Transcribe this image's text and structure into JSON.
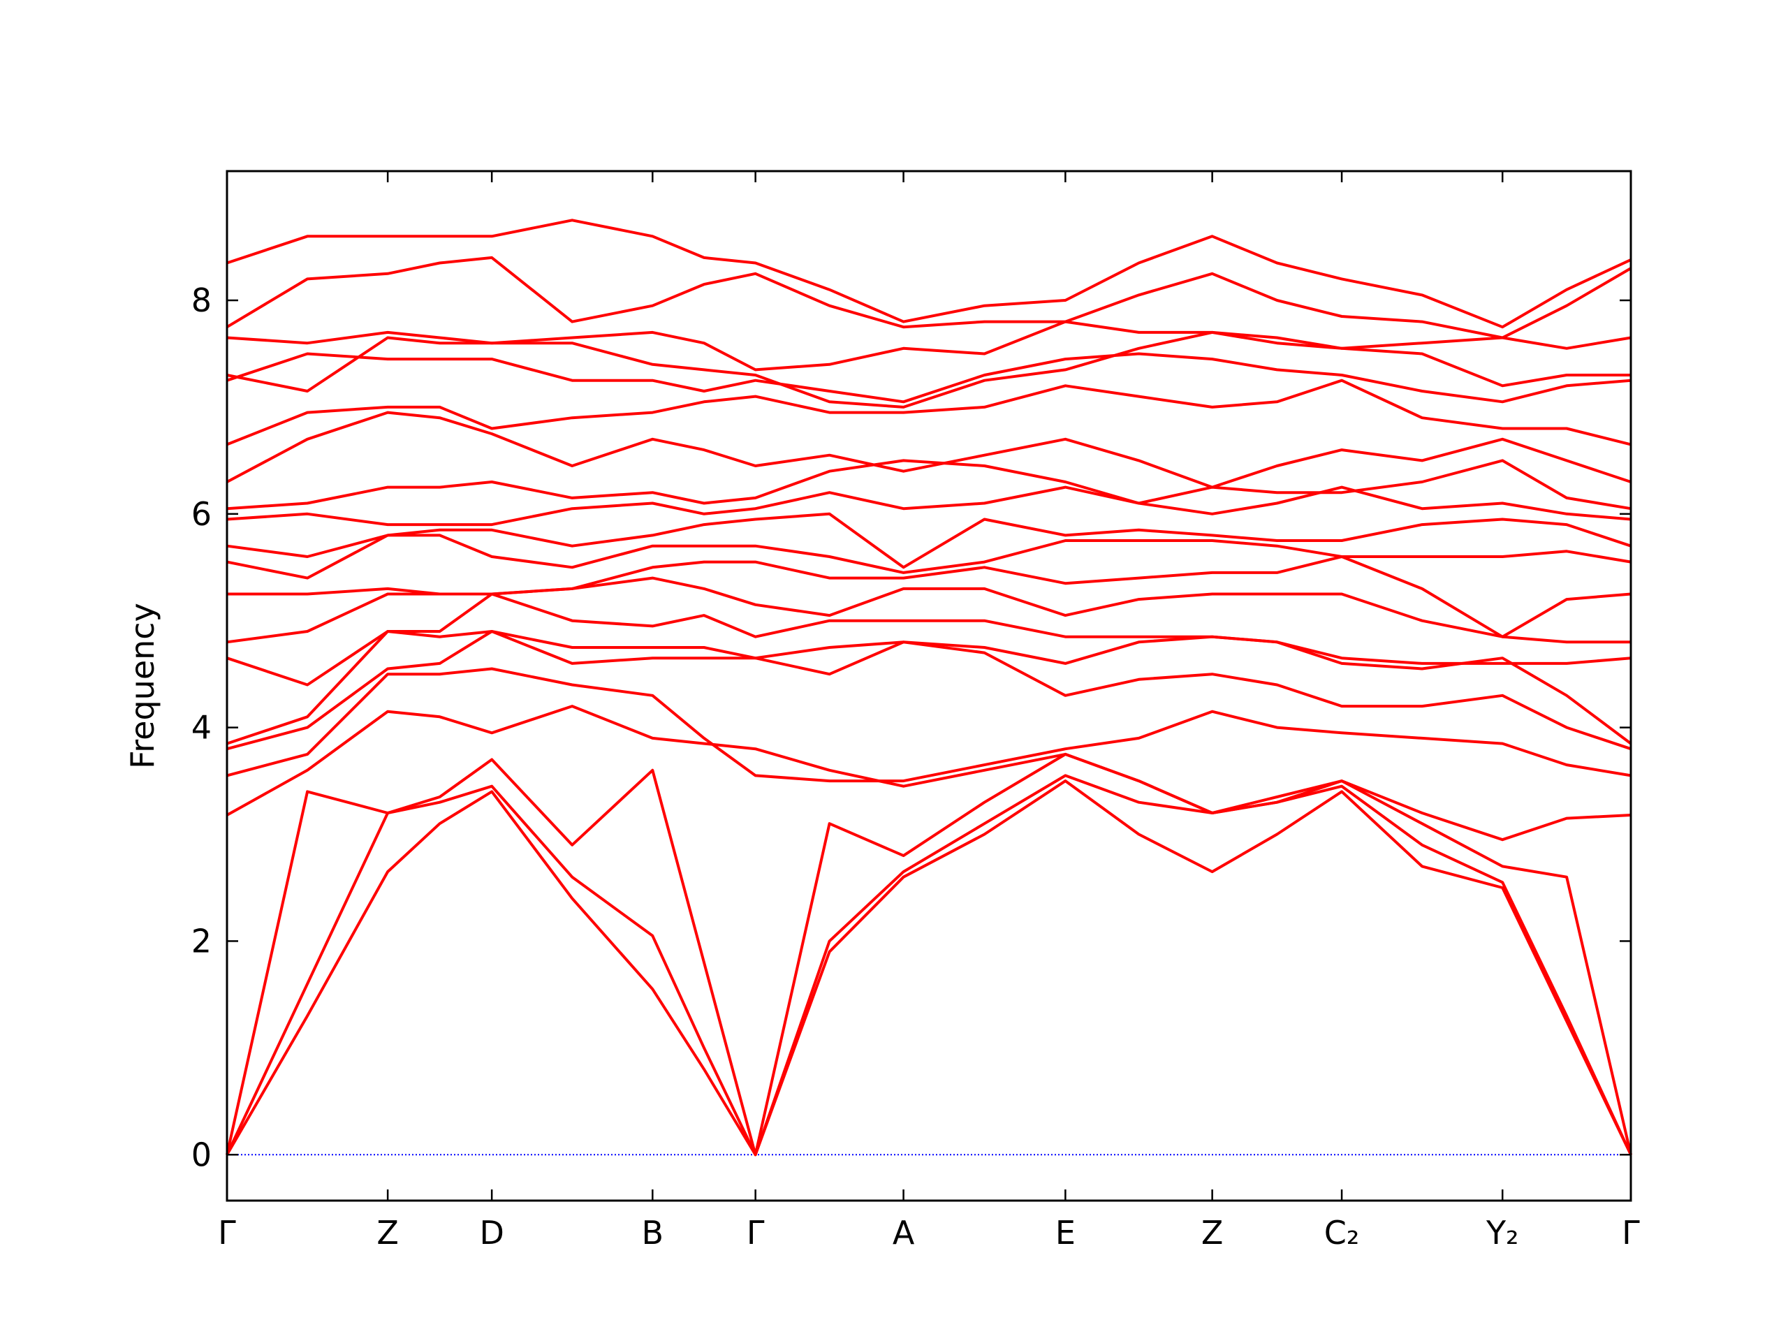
{
  "chart_data": {
    "type": "line",
    "ylabel": "Frequency",
    "x": [
      0,
      0.695,
      1.39,
      1.84,
      2.29,
      2.985,
      3.68,
      4.125,
      4.57,
      5.21,
      5.85,
      6.55,
      7.25,
      7.885,
      8.52,
      9.08,
      9.64,
      10.335,
      11.03,
      11.585,
      12.14
    ],
    "xlim": [
      0,
      12.14
    ],
    "xticks": [
      {
        "value": 0,
        "label": "Γ"
      },
      {
        "value": 1.39,
        "label": "Z"
      },
      {
        "value": 2.29,
        "label": "D"
      },
      {
        "value": 3.68,
        "label": "B"
      },
      {
        "value": 4.57,
        "label": "Γ"
      },
      {
        "value": 5.85,
        "label": "A"
      },
      {
        "value": 7.25,
        "label": "E"
      },
      {
        "value": 8.52,
        "label": "Z"
      },
      {
        "value": 9.64,
        "label": "C₂"
      },
      {
        "value": 11.03,
        "label": "Y₂"
      },
      {
        "value": 12.14,
        "label": "Γ"
      }
    ],
    "ylim": [
      -0.43,
      9.21
    ],
    "yticks": [
      0,
      2,
      4,
      6,
      8
    ],
    "color": "#ff0000",
    "zero_line": {
      "y": 0,
      "color": "#0000ff"
    },
    "series": [
      {
        "values": [
          0,
          1.3,
          2.65,
          3.1,
          3.4,
          2.4,
          1.55,
          0.8,
          0,
          1.9,
          2.6,
          3.0,
          3.5,
          3.0,
          2.65,
          3.0,
          3.4,
          2.7,
          2.5,
          1.25,
          0
        ]
      },
      {
        "values": [
          0,
          1.6,
          3.2,
          3.3,
          3.45,
          2.6,
          2.05,
          1.0,
          0,
          2.0,
          2.65,
          3.1,
          3.55,
          3.3,
          3.2,
          3.3,
          3.45,
          2.9,
          2.55,
          1.3,
          0
        ]
      },
      {
        "values": [
          0,
          3.4,
          3.2,
          3.35,
          3.7,
          2.9,
          3.6,
          1.8,
          0,
          3.1,
          2.8,
          3.3,
          3.75,
          3.5,
          3.2,
          3.3,
          3.5,
          3.1,
          2.7,
          2.6,
          0
        ]
      },
      {
        "values": [
          3.18,
          3.6,
          4.15,
          4.1,
          3.95,
          4.2,
          3.9,
          3.85,
          3.8,
          3.6,
          3.45,
          3.6,
          3.75,
          3.5,
          3.2,
          3.35,
          3.5,
          3.2,
          2.95,
          3.15,
          3.18
        ]
      },
      {
        "values": [
          3.55,
          3.75,
          4.5,
          4.5,
          4.55,
          4.4,
          4.3,
          3.9,
          3.55,
          3.5,
          3.5,
          3.65,
          3.8,
          3.9,
          4.15,
          4.0,
          3.95,
          3.9,
          3.85,
          3.65,
          3.55
        ]
      },
      {
        "values": [
          3.8,
          4.0,
          4.55,
          4.6,
          4.9,
          4.6,
          4.65,
          4.65,
          4.65,
          4.5,
          4.8,
          4.7,
          4.3,
          4.45,
          4.5,
          4.4,
          4.2,
          4.2,
          4.3,
          4.0,
          3.8
        ]
      },
      {
        "values": [
          3.85,
          4.1,
          4.9,
          4.85,
          4.9,
          4.75,
          4.75,
          4.75,
          4.65,
          4.75,
          4.8,
          4.75,
          4.6,
          4.8,
          4.85,
          4.8,
          4.6,
          4.55,
          4.65,
          4.3,
          3.85
        ]
      },
      {
        "values": [
          4.65,
          4.4,
          4.9,
          4.9,
          5.25,
          5.0,
          4.95,
          5.05,
          4.85,
          5.0,
          5.0,
          5.0,
          4.85,
          4.85,
          4.85,
          4.8,
          4.65,
          4.6,
          4.6,
          4.6,
          4.65
        ]
      },
      {
        "values": [
          4.8,
          4.9,
          5.25,
          5.25,
          5.25,
          5.3,
          5.4,
          5.3,
          5.15,
          5.05,
          5.3,
          5.3,
          5.05,
          5.2,
          5.25,
          5.25,
          5.25,
          5.0,
          4.85,
          4.8,
          4.8
        ]
      },
      {
        "values": [
          5.25,
          5.25,
          5.3,
          5.25,
          5.25,
          5.3,
          5.5,
          5.55,
          5.55,
          5.4,
          5.4,
          5.5,
          5.35,
          5.4,
          5.45,
          5.45,
          5.6,
          5.3,
          4.85,
          5.2,
          5.25
        ]
      },
      {
        "values": [
          5.55,
          5.4,
          5.8,
          5.8,
          5.6,
          5.5,
          5.7,
          5.7,
          5.7,
          5.6,
          5.45,
          5.55,
          5.75,
          5.75,
          5.75,
          5.7,
          5.6,
          5.6,
          5.6,
          5.65,
          5.55
        ]
      },
      {
        "values": [
          5.7,
          5.6,
          5.8,
          5.85,
          5.85,
          5.7,
          5.8,
          5.9,
          5.95,
          6.0,
          5.5,
          5.95,
          5.8,
          5.85,
          5.8,
          5.75,
          5.75,
          5.9,
          5.95,
          5.9,
          5.7
        ]
      },
      {
        "values": [
          5.95,
          6.0,
          5.9,
          5.9,
          5.9,
          6.05,
          6.1,
          6.0,
          6.05,
          6.2,
          6.05,
          6.1,
          6.25,
          6.1,
          6.0,
          6.1,
          6.25,
          6.05,
          6.1,
          6.0,
          5.95
        ]
      },
      {
        "values": [
          6.05,
          6.1,
          6.25,
          6.25,
          6.3,
          6.15,
          6.2,
          6.1,
          6.15,
          6.4,
          6.5,
          6.45,
          6.3,
          6.1,
          6.25,
          6.2,
          6.2,
          6.3,
          6.5,
          6.15,
          6.05
        ]
      },
      {
        "values": [
          6.3,
          6.7,
          6.95,
          6.9,
          6.75,
          6.45,
          6.7,
          6.6,
          6.45,
          6.55,
          6.4,
          6.55,
          6.7,
          6.5,
          6.25,
          6.45,
          6.6,
          6.5,
          6.7,
          6.5,
          6.3
        ]
      },
      {
        "values": [
          6.65,
          6.95,
          7.0,
          7.0,
          6.8,
          6.9,
          6.95,
          7.05,
          7.1,
          6.95,
          6.95,
          7.0,
          7.2,
          7.1,
          7.0,
          7.05,
          7.25,
          6.9,
          6.8,
          6.8,
          6.65
        ]
      },
      {
        "values": [
          7.25,
          7.5,
          7.45,
          7.45,
          7.45,
          7.25,
          7.25,
          7.15,
          7.25,
          7.15,
          7.05,
          7.3,
          7.45,
          7.5,
          7.45,
          7.35,
          7.3,
          7.15,
          7.05,
          7.2,
          7.25
        ]
      },
      {
        "values": [
          7.3,
          7.15,
          7.65,
          7.6,
          7.6,
          7.6,
          7.4,
          7.35,
          7.3,
          7.05,
          7.0,
          7.25,
          7.35,
          7.55,
          7.7,
          7.6,
          7.55,
          7.5,
          7.2,
          7.3,
          7.3
        ]
      },
      {
        "values": [
          7.65,
          7.6,
          7.7,
          7.65,
          7.6,
          7.65,
          7.7,
          7.6,
          7.35,
          7.4,
          7.55,
          7.5,
          7.8,
          7.7,
          7.7,
          7.65,
          7.55,
          7.6,
          7.65,
          7.55,
          7.65
        ]
      },
      {
        "values": [
          7.75,
          8.2,
          8.25,
          8.35,
          8.4,
          7.8,
          7.95,
          8.15,
          8.25,
          7.95,
          7.75,
          7.8,
          7.8,
          8.05,
          8.25,
          8.0,
          7.85,
          7.8,
          7.65,
          7.95,
          8.3
        ]
      },
      {
        "values": [
          8.35,
          8.6,
          8.6,
          8.6,
          8.6,
          8.75,
          8.6,
          8.4,
          8.35,
          8.1,
          7.8,
          7.95,
          8.0,
          8.35,
          8.6,
          8.35,
          8.2,
          8.05,
          7.75,
          8.1,
          8.38
        ]
      }
    ]
  }
}
